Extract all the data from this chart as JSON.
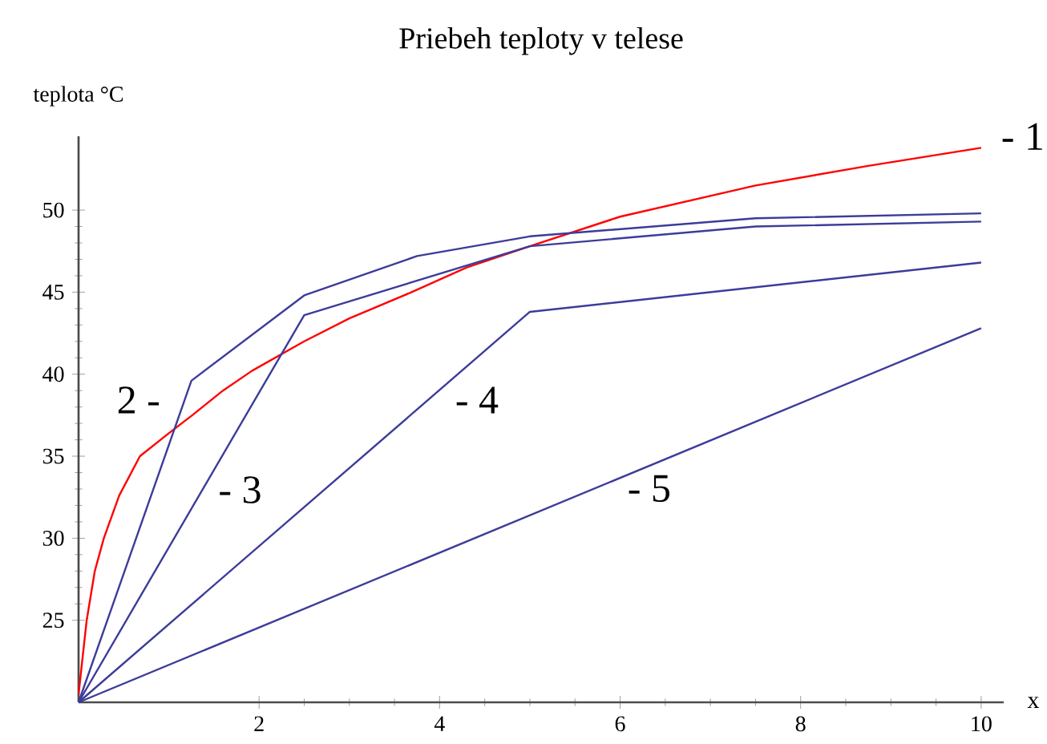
{
  "chart_data": {
    "type": "line",
    "title": "Priebeh teploty v telese",
    "xlabel": "x",
    "ylabel": "teplota °C",
    "xlim": [
      0,
      10.25
    ],
    "ylim": [
      20,
      54.5
    ],
    "xticks": [
      2,
      4,
      6,
      8,
      10
    ],
    "yticks": [
      25,
      30,
      35,
      40,
      45,
      50
    ],
    "marker": "none",
    "line_style": "solid",
    "grid": false,
    "series": [
      {
        "name": "- 1",
        "color": "#ff0000",
        "x": [
          0,
          0.05,
          0.09,
          0.18,
          0.28,
          0.45,
          0.68,
          1,
          1.26,
          1.6,
          1.92,
          2.5,
          3,
          3.69,
          4.3,
          5,
          6,
          7.5,
          8.75,
          10
        ],
        "values": [
          20.5,
          23,
          25,
          28,
          30,
          32.6,
          35,
          36.4,
          37.5,
          39,
          40.2,
          42,
          43.4,
          45,
          46.5,
          47.8,
          49.6,
          51.5,
          52.7,
          53.8
        ]
      },
      {
        "name": "2 -",
        "color": "#3c3c9a",
        "x": [
          0,
          1.25,
          2.5,
          3.75,
          5,
          7.5,
          10
        ],
        "values": [
          20,
          39.6,
          44.8,
          47.2,
          48.4,
          49.5,
          49.8
        ]
      },
      {
        "name": "- 3",
        "color": "#3c3c9a",
        "x": [
          0,
          2.5,
          5,
          7.5,
          10
        ],
        "values": [
          20,
          43.6,
          47.8,
          49,
          49.3
        ]
      },
      {
        "name": "- 4",
        "color": "#3c3c9a",
        "x": [
          0,
          5,
          10
        ],
        "values": [
          20,
          43.8,
          46.8
        ]
      },
      {
        "name": "- 5",
        "color": "#3c3c9a",
        "x": [
          0,
          10
        ],
        "values": [
          20,
          42.8
        ]
      }
    ]
  }
}
